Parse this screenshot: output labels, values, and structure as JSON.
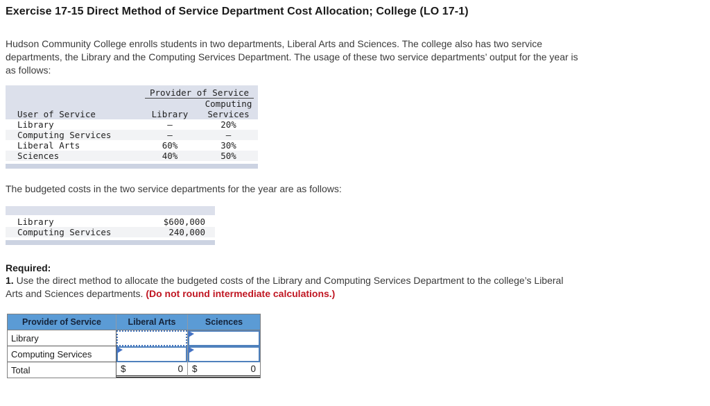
{
  "title": "Exercise 17-15 Direct Method of Service Department Cost Allocation; College (LO 17-1)",
  "intro": "Hudson Community College enrolls students in two departments, Liberal Arts and Sciences. The college also has two service\ndepartments, the Library and the Computing Services Department. The usage of these two service departments’ output for the year is\nas follows:",
  "usage_table": {
    "provider_header": "Provider of Service",
    "col_user": "User of Service",
    "col_library": "Library",
    "col_computing_line1": "Computing",
    "col_computing_line2": "Services",
    "rows": [
      {
        "label": "Library",
        "library": "–",
        "computing": "20%"
      },
      {
        "label": "Computing Services",
        "library": "–",
        "computing": "–"
      },
      {
        "label": "Liberal Arts",
        "library": "60%",
        "computing": "30%"
      },
      {
        "label": "Sciences",
        "library": "40%",
        "computing": "50%"
      }
    ]
  },
  "budget_text": "The budgeted costs in the two service departments for the year are as follows:",
  "budget_table": {
    "rows": [
      {
        "label": "Library",
        "value": "$600,000"
      },
      {
        "label": "Computing Services",
        "value": "240,000"
      }
    ]
  },
  "required": {
    "heading": "Required:",
    "item_number": "1.",
    "line1": " Use the direct method to allocate the budgeted costs of the Library and Computing Services Department to the college’s Liberal",
    "line2": "Arts and Sciences departments. ",
    "warning": "(Do not round intermediate calculations.)"
  },
  "answer_table": {
    "headers": [
      "Provider of Service",
      "Liberal Arts",
      "Sciences"
    ],
    "row_labels": [
      "Library",
      "Computing Services"
    ],
    "inputs": {
      "library_liberal_arts": "",
      "library_sciences": "",
      "computing_liberal_arts": "",
      "computing_sciences": ""
    },
    "total_label": "Total",
    "totals": {
      "liberal_arts_currency": "$",
      "liberal_arts_value": "0",
      "sciences_currency": "$",
      "sciences_value": "0"
    }
  },
  "colors": {
    "header_blue": "#5b9bd5",
    "input_border_blue": "#4f81bd",
    "flag_blue": "#4472c4",
    "exhibit_header_lavender": "#dce0eb",
    "exhibit_stripe": "#f2f3f5",
    "exhibit_footer_bar": "#ccd3e2",
    "warning_red": "#c01622"
  }
}
